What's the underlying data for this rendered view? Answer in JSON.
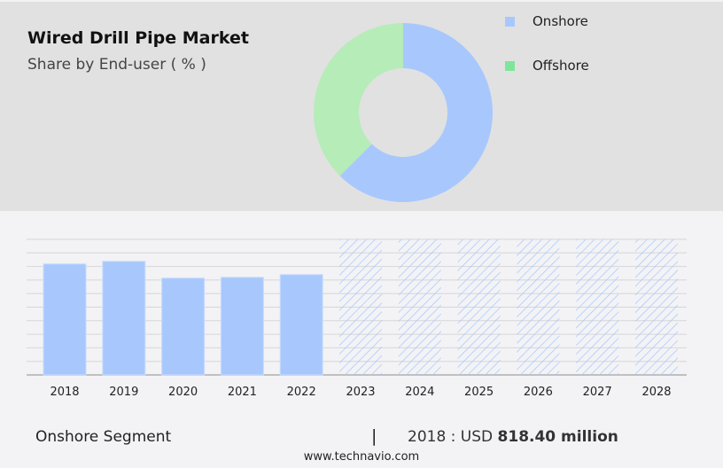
{
  "header": {
    "title": "Wired Drill Pipe Market",
    "subtitle": "Share by End-user ( % )"
  },
  "chart_data": [
    {
      "type": "pie",
      "donut": true,
      "slices": [
        {
          "name": "Onshore",
          "value": 62.5,
          "color": "#a8c8fd"
        },
        {
          "name": "Offshore",
          "value": 37.5,
          "color": "#b6ecb8"
        }
      ],
      "legend": [
        {
          "label": "Onshore",
          "color": "#a8c8fd"
        },
        {
          "label": "Offshore",
          "color": "#7ee69a"
        }
      ],
      "legend_placement": "right"
    },
    {
      "type": "bar",
      "categories": [
        "2018",
        "2019",
        "2020",
        "2021",
        "2022",
        "2023",
        "2024",
        "2025",
        "2026",
        "2027",
        "2028"
      ],
      "values": [
        818.4,
        838,
        714,
        720,
        740,
        null,
        null,
        null,
        null,
        null,
        null
      ],
      "forecast_categories": [
        "2023",
        "2024",
        "2025",
        "2026",
        "2027",
        "2028"
      ],
      "forecast_style": "hatched",
      "ylim": [
        0,
        1000
      ],
      "grid": true,
      "color": "#a8c8fd"
    }
  ],
  "footer": {
    "segment": "Onshore Segment",
    "separator": "|",
    "value_prefix": "2018 : USD",
    "value_bold": "818.40 million",
    "url": "www.technavio.com"
  }
}
